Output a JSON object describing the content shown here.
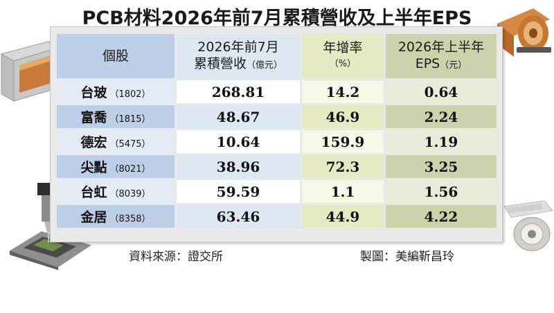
{
  "title": "PCB材料2026年前7月累積營收及上半年EPS",
  "headers": {
    "stock": "個股",
    "revenue_line1": "2026年前7月",
    "revenue_line2": "累積營收",
    "revenue_unit": "（億元）",
    "growth_line1": "年增率",
    "growth_unit": "（%）",
    "eps_line1": "2026年上半年",
    "eps_line2": "EPS",
    "eps_unit": "（元）"
  },
  "rows": [
    {
      "name": "台玻",
      "code": "（1802）",
      "revenue": "268.81",
      "growth": "14.2",
      "eps": "0.64"
    },
    {
      "name": "富喬",
      "code": "（1815）",
      "revenue": "48.67",
      "growth": "46.9",
      "eps": "2.24"
    },
    {
      "name": "德宏",
      "code": "（5475）",
      "revenue": "10.64",
      "growth": "159.9",
      "eps": "1.19"
    },
    {
      "name": "尖點",
      "code": "（8021）",
      "revenue": "38.96",
      "growth": "72.3",
      "eps": "3.25"
    },
    {
      "name": "台虹",
      "code": "（8039）",
      "revenue": "59.59",
      "growth": "1.1",
      "eps": "1.56"
    },
    {
      "name": "金居",
      "code": "（8358）",
      "revenue": "63.46",
      "growth": "44.9",
      "eps": "4.22"
    }
  ],
  "footer": {
    "source": "資料來源：證交所",
    "credit": "製圖：美編靳昌玲"
  },
  "colors": {
    "stock_header": "#bccfe6",
    "revenue_header": "#dde8f2",
    "growth_header": "#e4ebc3",
    "eps_header": "#cdd2ac"
  },
  "icons": [
    "copper-foil-tape-icon",
    "copper-roll-icon",
    "microscope-icon",
    "film-reel-icon"
  ]
}
